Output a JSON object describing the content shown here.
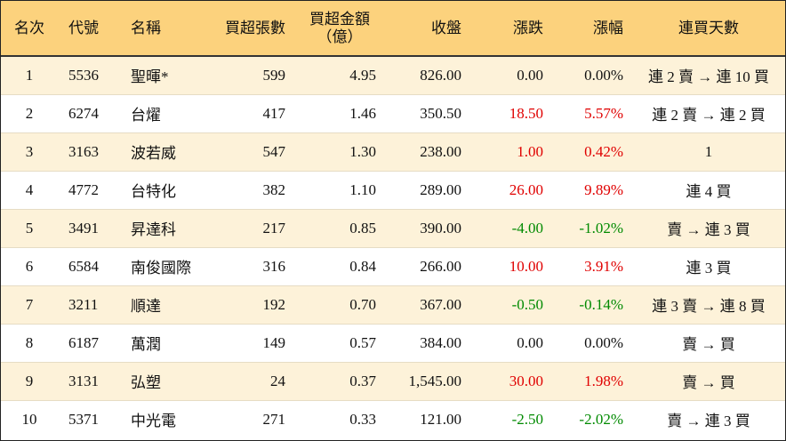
{
  "columns": {
    "rank": "名次",
    "code": "代號",
    "name": "名稱",
    "net_shares": "買超張數",
    "net_amount_line1": "買超金額",
    "net_amount_line2": "（億）",
    "close": "收盤",
    "change": "漲跌",
    "pct": "漲幅",
    "streak": "連買天數"
  },
  "colors": {
    "header_bg": "#fcd27d",
    "row_alt_bg": "#fdf2d9",
    "up": "#e00000",
    "down": "#008a00"
  },
  "rows": [
    {
      "rank": "1",
      "code": "5536",
      "name": "聖暉*",
      "net_shares": "599",
      "net_amount": "4.95",
      "close": "826.00",
      "change": "0.00",
      "pct": "0.00%",
      "streak": "連 2 賣 → 連 10 買",
      "dir": "flat"
    },
    {
      "rank": "2",
      "code": "6274",
      "name": "台燿",
      "net_shares": "417",
      "net_amount": "1.46",
      "close": "350.50",
      "change": "18.50",
      "pct": "5.57%",
      "streak": "連 2 賣 → 連 2 買",
      "dir": "up"
    },
    {
      "rank": "3",
      "code": "3163",
      "name": "波若威",
      "net_shares": "547",
      "net_amount": "1.30",
      "close": "238.00",
      "change": "1.00",
      "pct": "0.42%",
      "streak": "1",
      "dir": "up"
    },
    {
      "rank": "4",
      "code": "4772",
      "name": "台特化",
      "net_shares": "382",
      "net_amount": "1.10",
      "close": "289.00",
      "change": "26.00",
      "pct": "9.89%",
      "streak": "連 4 買",
      "dir": "up"
    },
    {
      "rank": "5",
      "code": "3491",
      "name": "昇達科",
      "net_shares": "217",
      "net_amount": "0.85",
      "close": "390.00",
      "change": "-4.00",
      "pct": "-1.02%",
      "streak": "賣 → 連 3 買",
      "dir": "down"
    },
    {
      "rank": "6",
      "code": "6584",
      "name": "南俊國際",
      "net_shares": "316",
      "net_amount": "0.84",
      "close": "266.00",
      "change": "10.00",
      "pct": "3.91%",
      "streak": "連 3 買",
      "dir": "up"
    },
    {
      "rank": "7",
      "code": "3211",
      "name": "順達",
      "net_shares": "192",
      "net_amount": "0.70",
      "close": "367.00",
      "change": "-0.50",
      "pct": "-0.14%",
      "streak": "連 3 賣 → 連 8 買",
      "dir": "down"
    },
    {
      "rank": "8",
      "code": "6187",
      "name": "萬潤",
      "net_shares": "149",
      "net_amount": "0.57",
      "close": "384.00",
      "change": "0.00",
      "pct": "0.00%",
      "streak": "賣 → 買",
      "dir": "flat"
    },
    {
      "rank": "9",
      "code": "3131",
      "name": "弘塑",
      "net_shares": "24",
      "net_amount": "0.37",
      "close": "1,545.00",
      "change": "30.00",
      "pct": "1.98%",
      "streak": "賣 → 買",
      "dir": "up"
    },
    {
      "rank": "10",
      "code": "5371",
      "name": "中光電",
      "net_shares": "271",
      "net_amount": "0.33",
      "close": "121.00",
      "change": "-2.50",
      "pct": "-2.02%",
      "streak": "賣 → 連 3 買",
      "dir": "down"
    }
  ]
}
